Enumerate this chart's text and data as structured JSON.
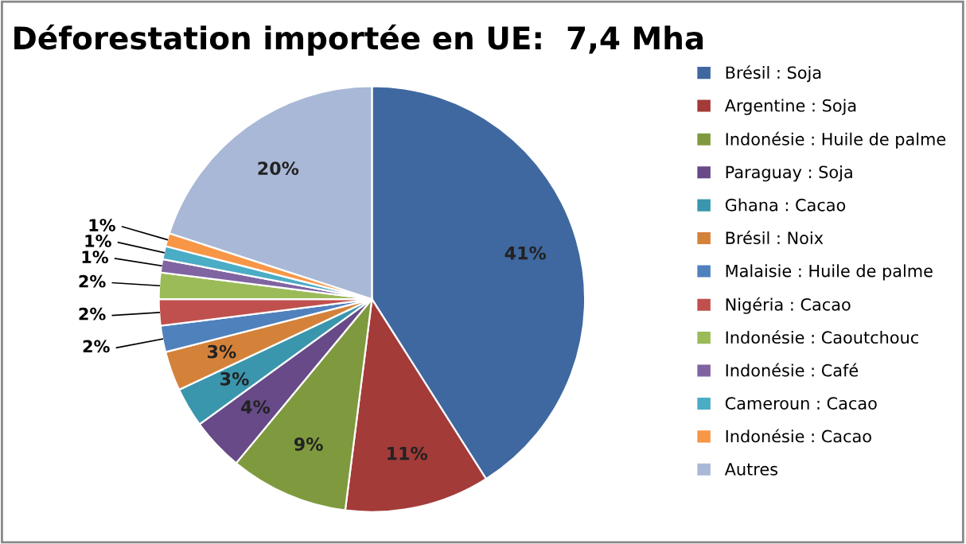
{
  "chart_data": {
    "type": "pie",
    "title": "Déforestation importée en UE:  7,4 Mha",
    "categories": [
      "Brésil : Soja",
      "Argentine : Soja",
      "Indonésie : Huile de palme",
      "Paraguay : Soja",
      "Ghana : Cacao",
      "Brésil : Noix",
      "Malaisie : Huile de palme",
      "Nigéria : Cacao",
      "Indonésie : Caoutchouc",
      "Indonésie : Café",
      "Cameroun : Cacao",
      "Indonésie : Cacao",
      "Autres"
    ],
    "values": [
      41,
      11,
      9,
      4,
      3,
      3,
      2,
      2,
      2,
      1,
      1,
      1,
      20
    ],
    "colors": [
      "#3f68a0",
      "#a33b39",
      "#7f9a3e",
      "#674a87",
      "#3a96ad",
      "#d4823a",
      "#4f81bd",
      "#c0504d",
      "#9bbb59",
      "#8064a2",
      "#4bacc6",
      "#f79646",
      "#a9b8d6"
    ],
    "value_labels": [
      "41%",
      "11%",
      "9%",
      "4%",
      "3%",
      "3%",
      "2%",
      "2%",
      "2%",
      "1%",
      "1%",
      "1%",
      "20%"
    ],
    "legend": "right"
  }
}
